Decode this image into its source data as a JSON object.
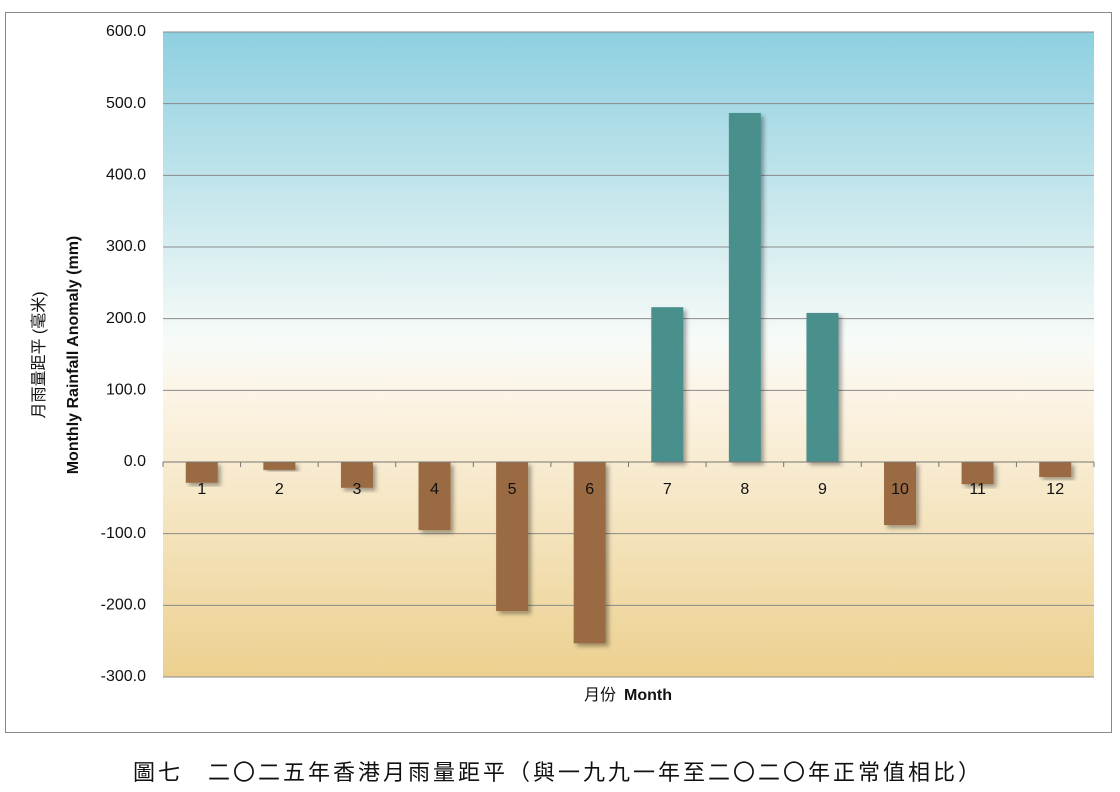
{
  "chart_data": {
    "type": "bar",
    "caption": "圖七　二〇二五年香港月雨量距平（與一九九一年至二〇二〇年正常值相比）",
    "xlabel": [
      "月份",
      "Month"
    ],
    "ylabel": [
      "月雨量距平 (毫米)",
      "Monthly Rainfall Anomaly (mm)"
    ],
    "categories": [
      "1",
      "2",
      "3",
      "4",
      "5",
      "6",
      "7",
      "8",
      "9",
      "10",
      "11",
      "12"
    ],
    "values": [
      -29,
      -11,
      -36,
      -95,
      -208,
      -253,
      216,
      487,
      208,
      -88,
      -31,
      -21
    ],
    "positive_color": "#4a8f8c",
    "negative_color": "#9a6b42",
    "ylim": [
      -300,
      600
    ],
    "yticks": [
      {
        "value": -300,
        "label": "-300.0"
      },
      {
        "value": -200,
        "label": "-200.0"
      },
      {
        "value": -100,
        "label": "-100.0"
      },
      {
        "value": 0,
        "label": "0.0"
      },
      {
        "value": 100,
        "label": "100.0"
      },
      {
        "value": 200,
        "label": "200.0"
      },
      {
        "value": 300,
        "label": "300.0"
      },
      {
        "value": 400,
        "label": "400.0"
      },
      {
        "value": 500,
        "label": "500.0"
      },
      {
        "value": 600,
        "label": "600.0"
      }
    ],
    "grid": true
  }
}
